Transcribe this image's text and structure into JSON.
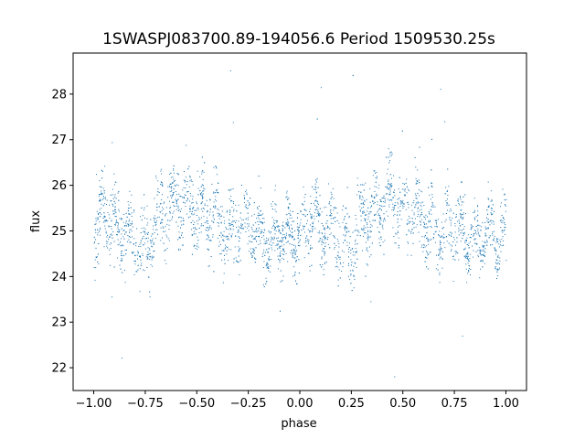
{
  "chart_data": {
    "type": "scatter",
    "title": "1SWASPJ083700.89-194056.6 Period 1509530.25s",
    "xlabel": "phase",
    "ylabel": "flux",
    "xlim": [
      -1.1,
      1.1
    ],
    "ylim": [
      21.5,
      28.9
    ],
    "xticks": [
      -1.0,
      -0.75,
      -0.5,
      -0.25,
      0.0,
      0.25,
      0.5,
      0.75,
      1.0
    ],
    "xtick_labels": [
      "−1.00",
      "−0.75",
      "−0.50",
      "−0.25",
      "0.00",
      "0.25",
      "0.50",
      "0.75",
      "1.00"
    ],
    "yticks": [
      22,
      23,
      24,
      25,
      26,
      27,
      28
    ],
    "ytick_labels": [
      "22",
      "23",
      "24",
      "25",
      "26",
      "27",
      "28"
    ],
    "grid": false,
    "legend": "none",
    "marker_color": "#1f77b4",
    "series": [
      {
        "x": [
          -1.0,
          -0.95,
          -0.9,
          -0.85,
          -0.8,
          -0.75,
          -0.7,
          -0.65,
          -0.6,
          -0.55,
          -0.5,
          -0.45,
          -0.4,
          -0.35,
          -0.3,
          -0.25,
          -0.2,
          -0.15,
          -0.1,
          -0.05,
          0.0,
          0.05,
          0.1,
          0.15,
          0.2,
          0.25,
          0.3,
          0.35,
          0.4,
          0.45,
          0.5,
          0.55,
          0.6,
          0.65,
          0.7,
          0.75,
          0.8,
          0.85,
          0.9,
          0.95,
          1.0
        ],
        "y": [
          24.9,
          25.4,
          25.1,
          25.0,
          24.8,
          24.6,
          25.3,
          25.4,
          25.6,
          25.7,
          25.4,
          25.5,
          25.2,
          24.9,
          25.0,
          25.2,
          24.9,
          24.8,
          25.0,
          24.9,
          24.9,
          25.3,
          25.1,
          25.1,
          24.8,
          24.6,
          25.3,
          25.4,
          25.6,
          25.7,
          25.4,
          25.5,
          25.2,
          24.9,
          25.0,
          25.2,
          24.9,
          24.8,
          25.0,
          24.9,
          24.9
        ],
        "spread": [
          0.9,
          1.0,
          1.0,
          0.9,
          1.0,
          1.0,
          1.0,
          0.9,
          1.0,
          1.0,
          0.9,
          1.0,
          1.0,
          0.9,
          0.9,
          0.9,
          0.9,
          0.8,
          0.8,
          0.8,
          0.9,
          1.0,
          1.0,
          0.9,
          1.0,
          1.0,
          1.0,
          0.9,
          1.0,
          1.0,
          0.9,
          1.0,
          1.0,
          0.9,
          0.9,
          0.9,
          0.9,
          0.8,
          0.8,
          0.8,
          0.9
        ]
      }
    ]
  }
}
